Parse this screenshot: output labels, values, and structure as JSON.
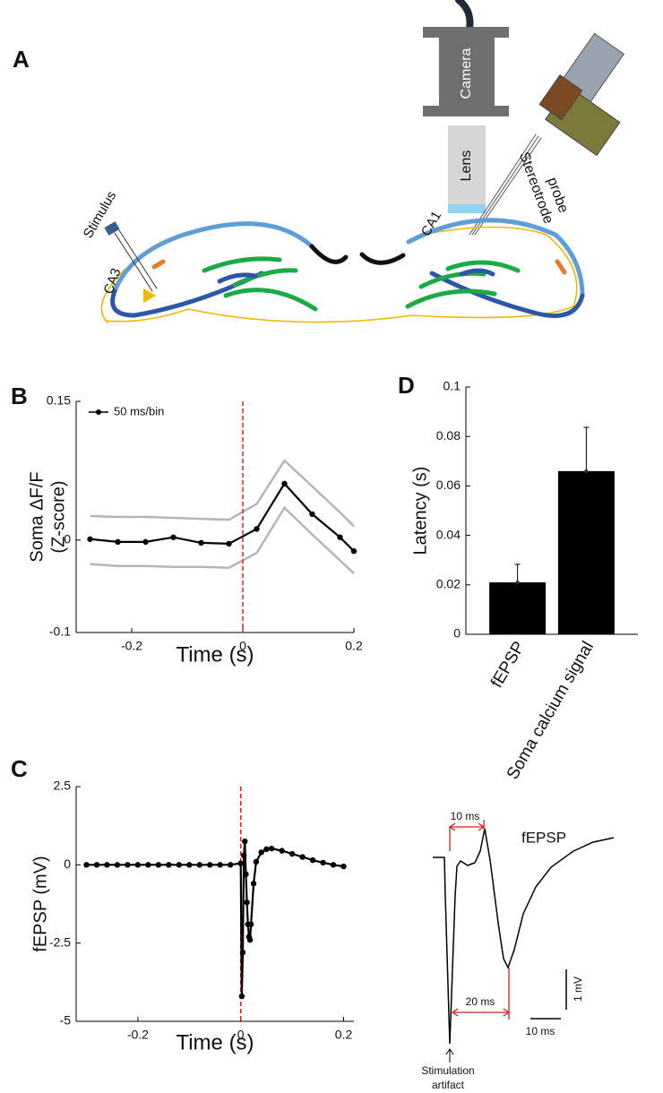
{
  "panel_labels": [
    "A",
    "B",
    "C",
    "D"
  ],
  "diagram": {
    "camera": "Camera",
    "lens": "Lens",
    "probe": [
      "Stereotrode",
      "probe"
    ],
    "stimulus": "Stimulus",
    "ca3": "CA3",
    "ca1": "CA1"
  },
  "chart_data": [
    {
      "type": "line",
      "xlabel": "Time (s)",
      "ylabel": [
        "Soma ΔF/F",
        "(Z-score)"
      ],
      "x": [
        -0.275,
        -0.225,
        -0.175,
        -0.125,
        -0.075,
        -0.025,
        0.025,
        0.075,
        0.125,
        0.175,
        0.2
      ],
      "series": [
        {
          "name": "50 ms/bin",
          "color": "#000000",
          "values": [
            0.001,
            -0.002,
            -0.002,
            0.003,
            -0.003,
            -0.004,
            0.012,
            0.061,
            0.028,
            0.003,
            -0.012
          ]
        }
      ],
      "upper": [
        0.026,
        0.025,
        0.025,
        0.024,
        0.023,
        0.022,
        0.039,
        0.086,
        0.058,
        0.03,
        0.015
      ],
      "lower": [
        -0.026,
        -0.028,
        -0.028,
        -0.029,
        -0.029,
        -0.03,
        -0.014,
        0.035,
        0.006,
        -0.022,
        -0.036
      ],
      "band_color": "#b5b5b5",
      "vline": 0,
      "vline_color": "#e0201b",
      "xlim": [
        -0.3,
        0.2
      ],
      "ylim": [
        -0.1,
        0.15
      ],
      "xticks": [
        -0.2,
        0,
        0.2
      ],
      "yticks": [
        -0.1,
        0,
        0.15
      ],
      "legend": "upper left"
    },
    {
      "type": "line",
      "xlabel": "Time (s)",
      "ylabel": [
        "fEPSP (mV)"
      ],
      "x": [
        -0.3,
        -0.28,
        -0.26,
        -0.24,
        -0.22,
        -0.2,
        -0.18,
        -0.16,
        -0.14,
        -0.12,
        -0.1,
        -0.08,
        -0.06,
        -0.04,
        -0.02,
        0,
        0.002,
        0.004,
        0.006,
        0.008,
        0.01,
        0.012,
        0.014,
        0.016,
        0.018,
        0.02,
        0.025,
        0.03,
        0.04,
        0.05,
        0.06,
        0.08,
        0.1,
        0.12,
        0.14,
        0.16,
        0.18,
        0.2
      ],
      "series": [
        {
          "name": null,
          "color": "#000000",
          "values": [
            0,
            0,
            0,
            0,
            0,
            0,
            0,
            0,
            0,
            0,
            0,
            0,
            0,
            0,
            0,
            0.05,
            -4.2,
            -2.8,
            0.3,
            0.75,
            -0.3,
            -1.2,
            -1.9,
            -2.3,
            -2.4,
            -1.9,
            -0.6,
            0.1,
            0.4,
            0.5,
            0.52,
            0.45,
            0.35,
            0.25,
            0.15,
            0.07,
            0,
            -0.05
          ]
        }
      ],
      "vline": 0,
      "vline_color": "#e0201b",
      "xlim": [
        -0.32,
        0.22
      ],
      "ylim": [
        -5,
        2.5
      ],
      "xticks": [
        -0.2,
        0,
        0.2
      ],
      "yticks": [
        -5,
        -2.5,
        0,
        2.5
      ]
    },
    {
      "type": "bar",
      "ylabel": [
        "Latency (s)"
      ],
      "categories": [
        "fEPSP",
        "Soma calcium signal"
      ],
      "values": [
        0.021,
        0.066
      ],
      "errors": [
        0.0073,
        0.0177
      ],
      "color": "#000000",
      "ylim": [
        0,
        0.1
      ],
      "yticks": [
        0,
        0.02,
        0.04,
        0.06,
        0.08,
        0.1
      ]
    }
  ],
  "trace": {
    "interval1": "10 ms",
    "title": "fEPSP",
    "interval2": "20 ms",
    "scale_y": "1 mV",
    "scale_x": "10 ms",
    "artifact": [
      "Stimulation",
      "artifact"
    ]
  }
}
